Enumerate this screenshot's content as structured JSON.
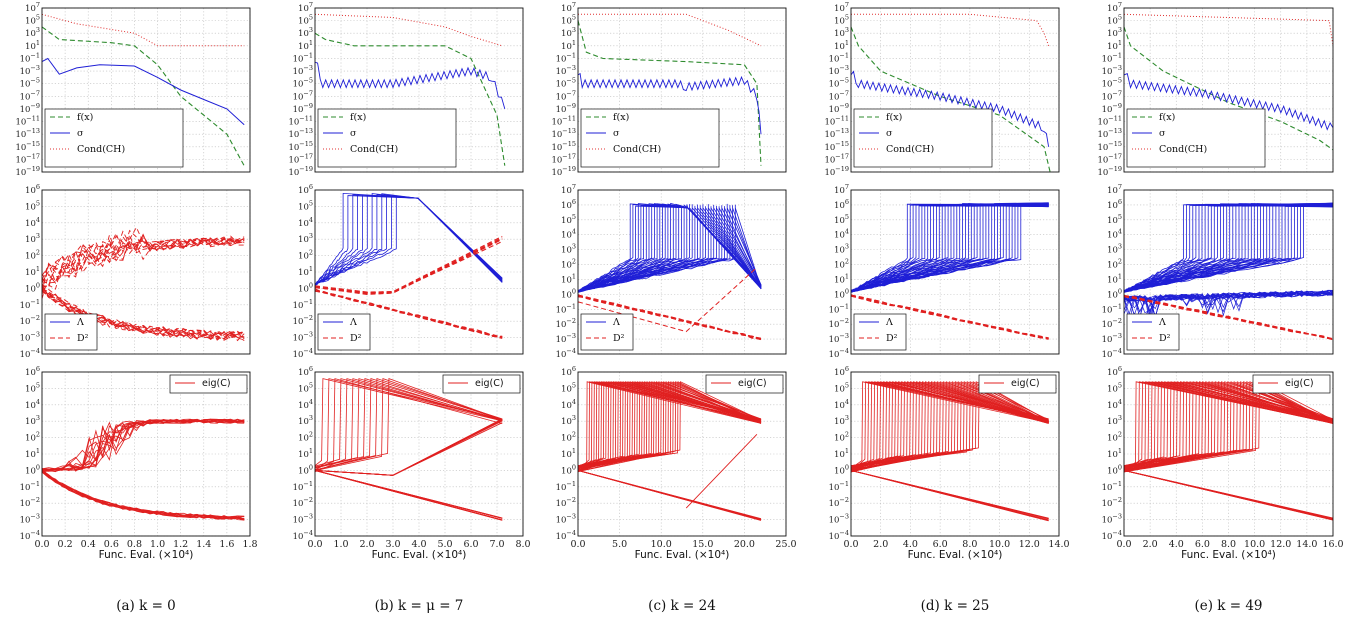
{
  "figure": {
    "xlabel": "Func. Eval. (×10⁴)",
    "row_legends": {
      "top": [
        "f(x)",
        "σ",
        "Cond(CH)"
      ],
      "middle": [
        "Λ",
        "D²"
      ],
      "bottom": [
        "eig(C)"
      ]
    },
    "colors": {
      "fx": "#2e8b2e",
      "sigma": "#1f1fd6",
      "cond": "#e03030",
      "lambda": "#1f1fd6",
      "d2": "#e02020",
      "eig": "#e02020"
    },
    "rows": {
      "top": {
        "y_log_range": [
          -19,
          7
        ],
        "tick_exponents": [
          7,
          5,
          3,
          1,
          -1,
          -3,
          -5,
          -7,
          -9,
          -11,
          -13,
          -15,
          -17,
          -19
        ]
      },
      "middle": {
        "y_log_range": [
          -4,
          6
        ]
      },
      "bottom": {
        "y_log_range": [
          -4,
          6
        ],
        "tick_exponents": [
          6,
          5,
          4,
          3,
          2,
          1,
          0,
          -1,
          -2,
          -3,
          -4
        ]
      }
    }
  },
  "chart_data": [
    {
      "type": "line",
      "caption": "(a) k = 0",
      "x_ticks": [
        "0.0",
        "0.2",
        "0.4",
        "0.6",
        "0.8",
        "1.0",
        "1.2",
        "1.4",
        "1.6",
        "1.8"
      ],
      "xlim": [
        0,
        1.8
      ],
      "middle_y_exponents": [
        6,
        5,
        4,
        3,
        2,
        1,
        0,
        -1,
        -2,
        -3,
        -4
      ],
      "top": {
        "f(x)": [
          [
            0,
            4
          ],
          [
            0.15,
            2
          ],
          [
            0.6,
            1.5
          ],
          [
            0.8,
            1
          ],
          [
            1.0,
            -2
          ],
          [
            1.2,
            -7
          ],
          [
            1.4,
            -10
          ],
          [
            1.6,
            -13
          ],
          [
            1.75,
            -18
          ]
        ],
        "sigma": [
          [
            0,
            -1.5
          ],
          [
            0.05,
            -1
          ],
          [
            0.15,
            -3.5
          ],
          [
            0.3,
            -2.5
          ],
          [
            0.5,
            -2
          ],
          [
            0.8,
            -2.2
          ],
          [
            1.0,
            -4
          ],
          [
            1.2,
            -6
          ],
          [
            1.4,
            -7.5
          ],
          [
            1.6,
            -9
          ],
          [
            1.75,
            -11.5
          ]
        ],
        "Cond(CH)": [
          [
            0,
            6
          ],
          [
            0.3,
            4.5
          ],
          [
            0.8,
            3
          ],
          [
            1.0,
            1
          ],
          [
            1.3,
            1
          ],
          [
            1.75,
            1
          ]
        ]
      },
      "middle": {
        "D2_upper_end": 3,
        "D2_lower_end": -3
      },
      "bottom": {
        "eig_upper_end": 3,
        "eig_lower_end": -3
      }
    },
    {
      "type": "line",
      "caption": "(b) k = μ = 7",
      "x_ticks": [
        "0.0",
        "1.0",
        "2.0",
        "3.0",
        "4.0",
        "5.0",
        "6.0",
        "7.0",
        "8.0"
      ],
      "xlim": [
        0,
        8
      ],
      "middle_y_exponents": [
        6,
        5,
        4,
        3,
        2,
        1,
        0,
        -1,
        -2,
        -3,
        -4
      ],
      "top": {
        "f(x)": [
          [
            0,
            3
          ],
          [
            0.4,
            2
          ],
          [
            1.5,
            1
          ],
          [
            4,
            1
          ],
          [
            5,
            1
          ],
          [
            6,
            -1
          ],
          [
            7,
            -10
          ],
          [
            7.3,
            -18
          ]
        ],
        "sigma": [
          [
            0,
            -1
          ],
          [
            0.3,
            -5
          ],
          [
            3,
            -5
          ],
          [
            6,
            -3
          ],
          [
            6.8,
            -4
          ],
          [
            7.3,
            -9
          ]
        ],
        "Cond(CH)": [
          [
            0,
            6
          ],
          [
            3,
            5.5
          ],
          [
            5,
            4
          ],
          [
            6,
            2.5
          ],
          [
            7.2,
            1
          ]
        ]
      },
      "middle": {
        "Lambda_peak": 5.7,
        "Lambda_end": 0.5,
        "D2_upper_end": 3,
        "D2_lower_end": -3
      },
      "bottom": {
        "eig_peak": 5.7,
        "eig_end": 3
      }
    },
    {
      "type": "line",
      "caption": "(c) k = 24",
      "x_ticks": [
        "0.0",
        "5.0",
        "10.0",
        "15.0",
        "20.0",
        "25.0"
      ],
      "xlim": [
        0,
        25
      ],
      "middle_y_exponents": [
        7,
        6,
        5,
        4,
        3,
        2,
        1,
        0,
        -1,
        -2,
        -3,
        -4
      ],
      "top": {
        "f(x)": [
          [
            0,
            5
          ],
          [
            1,
            0
          ],
          [
            3,
            -1
          ],
          [
            13,
            -1.5
          ],
          [
            20,
            -2
          ],
          [
            21.5,
            -5
          ],
          [
            22,
            -18
          ]
        ],
        "sigma": [
          [
            0,
            -3
          ],
          [
            0.5,
            -5
          ],
          [
            12,
            -5
          ],
          [
            13,
            -5.5
          ],
          [
            20,
            -4.5
          ],
          [
            21.5,
            -7
          ],
          [
            22,
            -13
          ]
        ],
        "Cond(CH)": [
          [
            0,
            6
          ],
          [
            13,
            6
          ],
          [
            18,
            3.5
          ],
          [
            22,
            1
          ]
        ]
      },
      "middle": {
        "Lambda_peak": 6,
        "Lambda_end": 0.5,
        "D2_lower_end": -3
      },
      "bottom": {
        "eig_peak": 5.5,
        "eig_end": 3
      }
    },
    {
      "type": "line",
      "caption": "(d) k = 25",
      "x_ticks": [
        "0.0",
        "2.0",
        "4.0",
        "6.0",
        "8.0",
        "10.0",
        "12.0",
        "14.0"
      ],
      "xlim": [
        0,
        14
      ],
      "middle_y_exponents": [
        7,
        6,
        5,
        4,
        3,
        2,
        1,
        0,
        -1,
        -2,
        -3,
        -4
      ],
      "top": {
        "f(x)": [
          [
            0,
            4
          ],
          [
            0.5,
            1
          ],
          [
            2,
            -3
          ],
          [
            6,
            -7
          ],
          [
            10,
            -10
          ],
          [
            13,
            -15
          ],
          [
            13.4,
            -19
          ]
        ],
        "sigma": [
          [
            0,
            -3
          ],
          [
            0.5,
            -5
          ],
          [
            6,
            -7
          ],
          [
            10,
            -9
          ],
          [
            13,
            -12
          ],
          [
            13.3,
            -15
          ]
        ],
        "Cond(CH)": [
          [
            0,
            6
          ],
          [
            8,
            6
          ],
          [
            12.5,
            5
          ],
          [
            13,
            3
          ],
          [
            13.3,
            1
          ]
        ]
      },
      "middle": {
        "Lambda_peak": 6,
        "D2_lower_end": -3
      },
      "bottom": {
        "eig_peak": 5.5,
        "eig_end": 3
      }
    },
    {
      "type": "line",
      "caption": "(e) k = 49",
      "x_ticks": [
        "0.0",
        "2.0",
        "4.0",
        "6.0",
        "8.0",
        "10.0",
        "12.0",
        "14.0",
        "16.0"
      ],
      "xlim": [
        0,
        16
      ],
      "middle_y_exponents": [
        7,
        6,
        5,
        4,
        3,
        2,
        1,
        0,
        -1,
        -2,
        -3,
        -4
      ],
      "top": {
        "f(x)": [
          [
            0,
            4
          ],
          [
            0.5,
            1
          ],
          [
            3,
            -3
          ],
          [
            8,
            -8
          ],
          [
            12,
            -11
          ],
          [
            15,
            -14
          ],
          [
            16,
            -15.5
          ]
        ],
        "sigma": [
          [
            0,
            -3
          ],
          [
            0.5,
            -5
          ],
          [
            6,
            -6.5
          ],
          [
            12,
            -9
          ],
          [
            16,
            -12
          ]
        ],
        "Cond(CH)": [
          [
            0,
            6
          ],
          [
            15.7,
            5
          ],
          [
            16,
            1
          ]
        ]
      },
      "middle": {
        "Lambda_peak": 6,
        "D2_lower_end": -3
      },
      "bottom": {
        "eig_peak": 5.5,
        "eig_end": 3
      }
    }
  ]
}
